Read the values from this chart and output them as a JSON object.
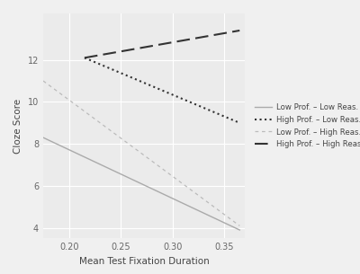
{
  "title": "",
  "xlabel": "Mean Test Fixation Duration",
  "ylabel": "Cloze Score",
  "background_color": "#ebebeb",
  "plot_bg_color": "#ebebeb",
  "outer_bg_color": "#f5f5f5",
  "grid_color": "#ffffff",
  "xlim": [
    0.175,
    0.37
  ],
  "ylim": [
    3.5,
    14.2
  ],
  "xticks": [
    0.2,
    0.25,
    0.3,
    0.35
  ],
  "yticks": [
    4,
    6,
    8,
    10,
    12
  ],
  "lines": [
    {
      "label": "Low Prof. – Low Reas.",
      "x": [
        0.175,
        0.365
      ],
      "y": [
        8.3,
        3.9
      ],
      "color": "#aaaaaa",
      "linestyle": "solid",
      "linewidth": 1.0
    },
    {
      "label": "High Prof. – Low Reas.",
      "x": [
        0.215,
        0.365
      ],
      "y": [
        12.1,
        9.0
      ],
      "color": "#333333",
      "linestyle": "dotted",
      "linewidth": 1.5
    },
    {
      "label": "Low Prof. – High Reas.",
      "x": [
        0.175,
        0.365
      ],
      "y": [
        11.0,
        4.1
      ],
      "color": "#bbbbbb",
      "linestyle": "dashed_short",
      "linewidth": 0.9
    },
    {
      "label": "High Prof. – High Reas.",
      "x": [
        0.215,
        0.365
      ],
      "y": [
        12.1,
        13.4
      ],
      "color": "#333333",
      "linestyle": "dashed_long",
      "linewidth": 1.5
    }
  ]
}
